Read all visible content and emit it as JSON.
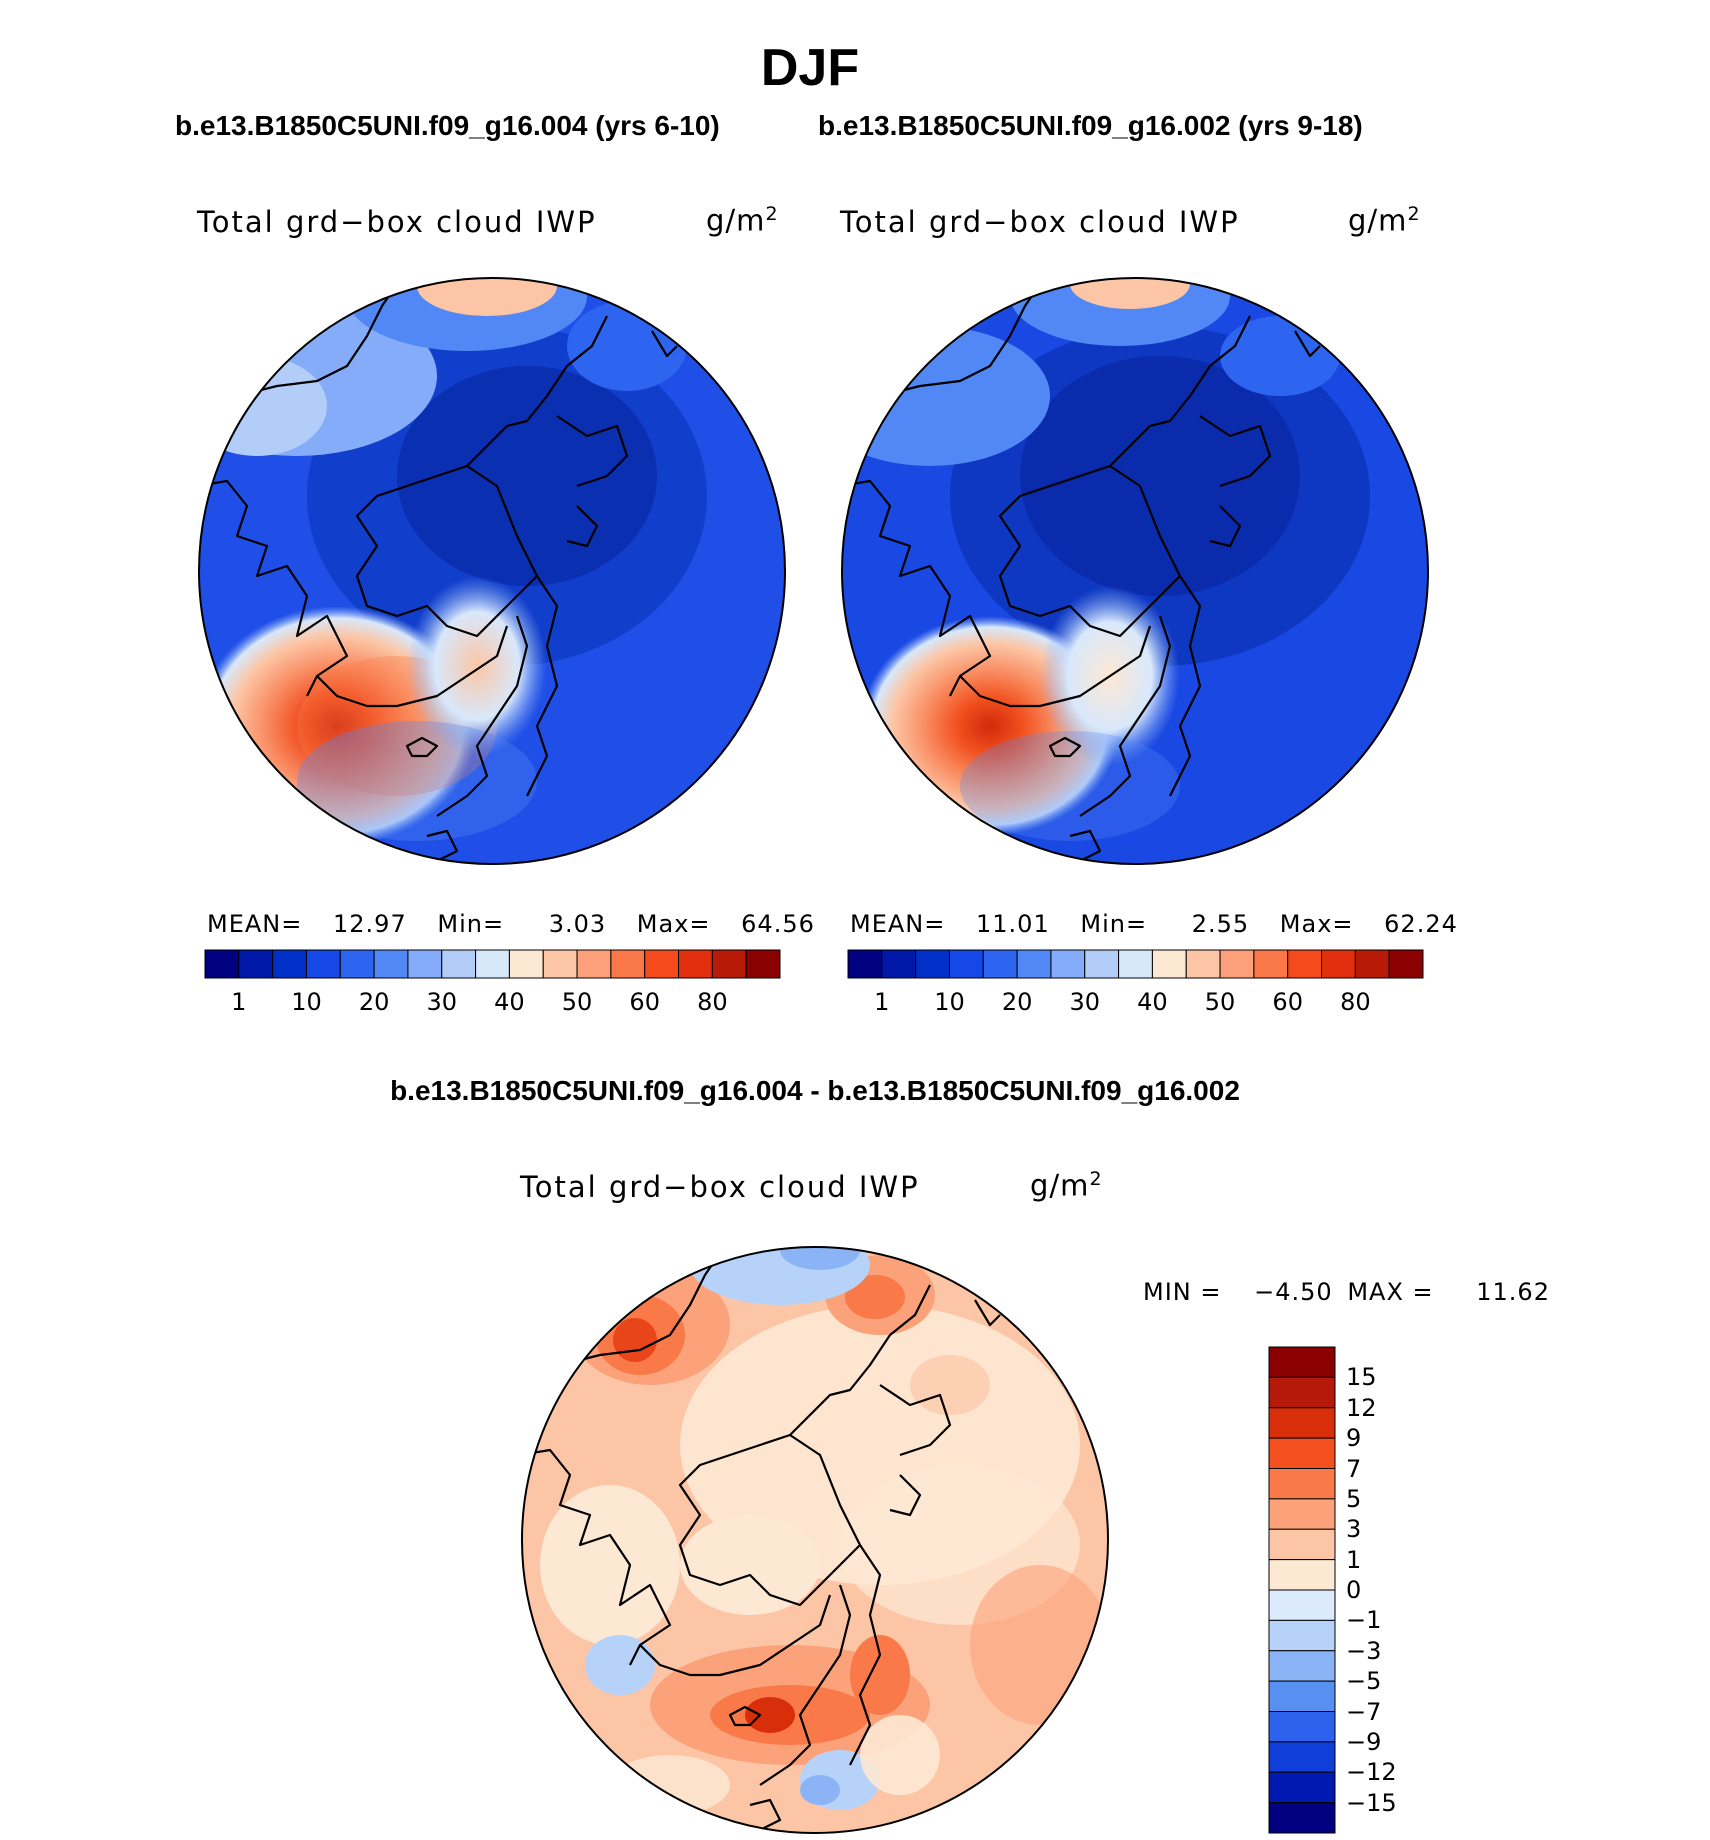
{
  "season": "DJF",
  "colors": {
    "blue_scale": [
      "#000080",
      "#0018a8",
      "#0030c8",
      "#1648e8",
      "#2d64f0",
      "#5288f5",
      "#84acf8",
      "#b3cdf9",
      "#d8e8fb"
    ],
    "red_scale": [
      "#fde8d4",
      "#fcc6a6",
      "#fba07a",
      "#f97748",
      "#f54a1c",
      "#e12f0e",
      "#b81a08",
      "#8b0000"
    ],
    "diff_scale": [
      "#000080",
      "#0019b0",
      "#0f3ed8",
      "#2c62ec",
      "#5890f2",
      "#8ab4f6",
      "#b7d2f9",
      "#dbeafc",
      "#fde8d4",
      "#fcc6a6",
      "#fba27a",
      "#f97a48",
      "#f44f1f",
      "#d82f0b",
      "#b4190a",
      "#8b0000"
    ]
  },
  "chart_data": [
    {
      "type": "heatmap",
      "panel": "model-1",
      "case_title": "b.e13.B1850C5UNI.f09_g16.004 (yrs 6-10)",
      "variable": "Total grd−box cloud IWP",
      "units_base": "g/m",
      "units_exp": "2",
      "projection": "polar stereographic (north)",
      "stats": {
        "mean_label": "MEAN=",
        "mean": "12.97",
        "min_label": "Min=",
        "min": "3.03",
        "max_label": "Max=",
        "max": "64.56"
      },
      "colorbar_levels": [
        1,
        5,
        10,
        15,
        20,
        25,
        30,
        35,
        40,
        45,
        50,
        55,
        60,
        70,
        80
      ],
      "colorbar_tick_labels": [
        "1",
        "10",
        "20",
        "30",
        "40",
        "50",
        "60",
        "80"
      ]
    },
    {
      "type": "heatmap",
      "panel": "model-2",
      "case_title": "b.e13.B1850C5UNI.f09_g16.002 (yrs 9-18)",
      "variable": "Total grd−box cloud IWP",
      "units_base": "g/m",
      "units_exp": "2",
      "projection": "polar stereographic (north)",
      "stats": {
        "mean_label": "MEAN=",
        "mean": "11.01",
        "min_label": "Min=",
        "min": "2.55",
        "max_label": "Max=",
        "max": "62.24"
      },
      "colorbar_levels": [
        1,
        5,
        10,
        15,
        20,
        25,
        30,
        35,
        40,
        45,
        50,
        55,
        60,
        70,
        80
      ],
      "colorbar_tick_labels": [
        "1",
        "10",
        "20",
        "30",
        "40",
        "50",
        "60",
        "80"
      ]
    },
    {
      "type": "heatmap",
      "panel": "difference",
      "case_title": "b.e13.B1850C5UNI.f09_g16.004 - b.e13.B1850C5UNI.f09_g16.002",
      "variable": "Total grd−box cloud IWP",
      "units_base": "g/m",
      "units_exp": "2",
      "projection": "polar stereographic (north)",
      "stats": {
        "min_label": "MIN =",
        "min": "−4.50",
        "max_label": "MAX =",
        "max": "11.62"
      },
      "colorbar_tick_labels": [
        "15",
        "12",
        "9",
        "7",
        "5",
        "3",
        "1",
        "0",
        "−1",
        "−3",
        "−5",
        "−7",
        "−9",
        "−12",
        "−15"
      ]
    }
  ]
}
